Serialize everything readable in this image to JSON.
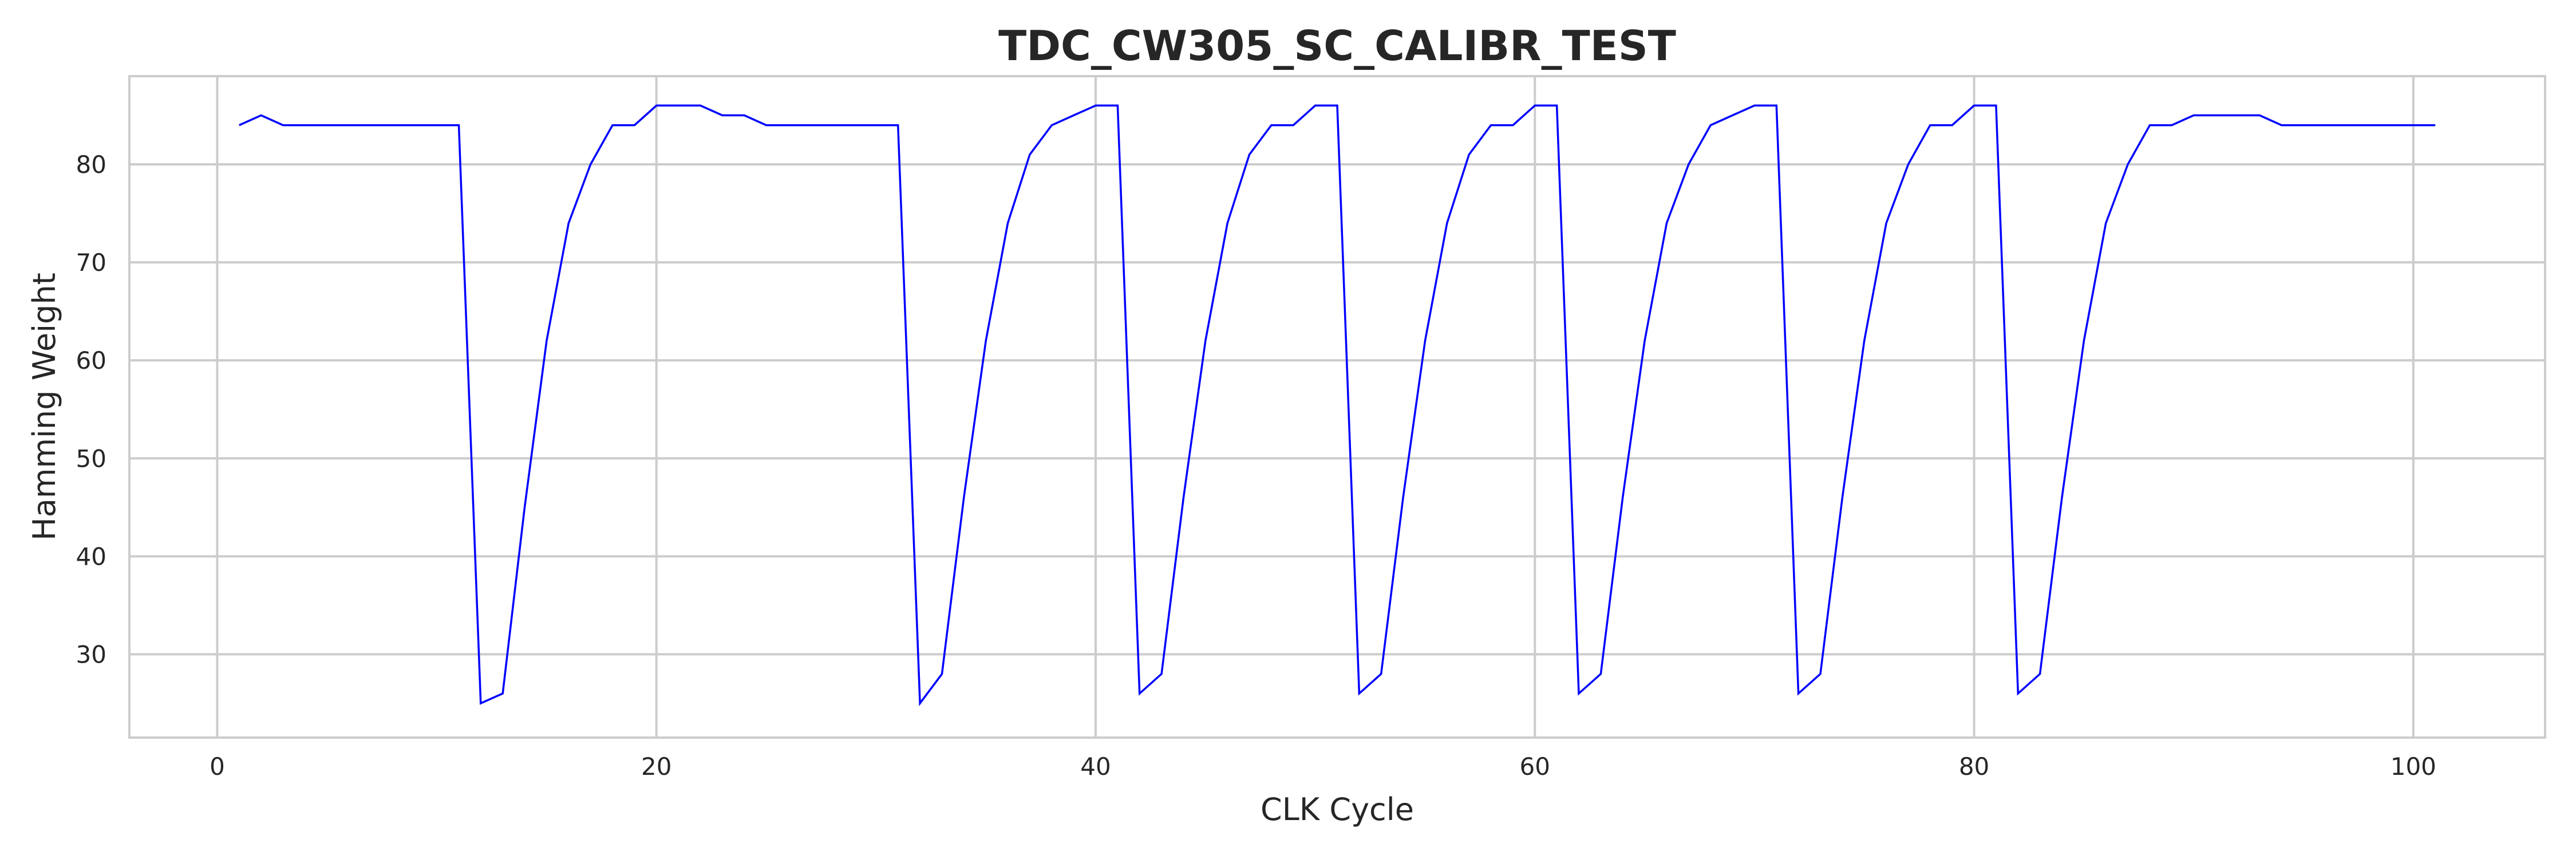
{
  "chart_data": {
    "type": "line",
    "title": "TDC_CW305_SC_CALIBR_TEST",
    "xlabel": "CLK Cycle",
    "ylabel": "Hamming Weight",
    "xlim": [
      -4,
      106
    ],
    "ylim": [
      21.5,
      89
    ],
    "xticks": [
      0,
      20,
      40,
      60,
      80,
      100
    ],
    "yticks": [
      30,
      40,
      50,
      60,
      70,
      80
    ],
    "grid": true,
    "series": [
      {
        "color": "#0000ff",
        "x": [
          1,
          2,
          3,
          4,
          5,
          6,
          7,
          8,
          9,
          10,
          11,
          12,
          13,
          14,
          15,
          16,
          17,
          18,
          19,
          20,
          21,
          22,
          23,
          24,
          25,
          26,
          27,
          28,
          29,
          30,
          31,
          32,
          33,
          34,
          35,
          36,
          37,
          38,
          39,
          40,
          41,
          42,
          43,
          44,
          45,
          46,
          47,
          48,
          49,
          50,
          51,
          52,
          53,
          54,
          55,
          56,
          57,
          58,
          59,
          60,
          61,
          62,
          63,
          64,
          65,
          66,
          67,
          68,
          69,
          70,
          71,
          72,
          73,
          74,
          75,
          76,
          77,
          78,
          79,
          80,
          81,
          82,
          83,
          84,
          85,
          86,
          87,
          88,
          89,
          90,
          91,
          92,
          93,
          94,
          95,
          96,
          97,
          98,
          99,
          100,
          101
        ],
        "y": [
          84,
          85,
          84,
          84,
          84,
          84,
          84,
          84,
          84,
          84,
          84,
          25,
          26,
          45,
          62,
          74,
          80,
          84,
          84,
          86,
          86,
          86,
          85,
          85,
          84,
          84,
          84,
          84,
          84,
          84,
          84,
          25,
          28,
          46,
          62,
          74,
          81,
          84,
          85,
          86,
          86,
          26,
          28,
          46,
          62,
          74,
          81,
          84,
          84,
          86,
          86,
          26,
          28,
          46,
          62,
          74,
          81,
          84,
          84,
          86,
          86,
          26,
          28,
          46,
          62,
          74,
          80,
          84,
          85,
          86,
          86,
          26,
          28,
          46,
          62,
          74,
          80,
          84,
          84,
          86,
          86,
          26,
          28,
          46,
          62,
          74,
          80,
          84,
          84,
          85,
          85,
          85,
          85,
          84,
          84,
          84,
          84,
          84,
          84,
          84,
          84
        ]
      }
    ]
  }
}
